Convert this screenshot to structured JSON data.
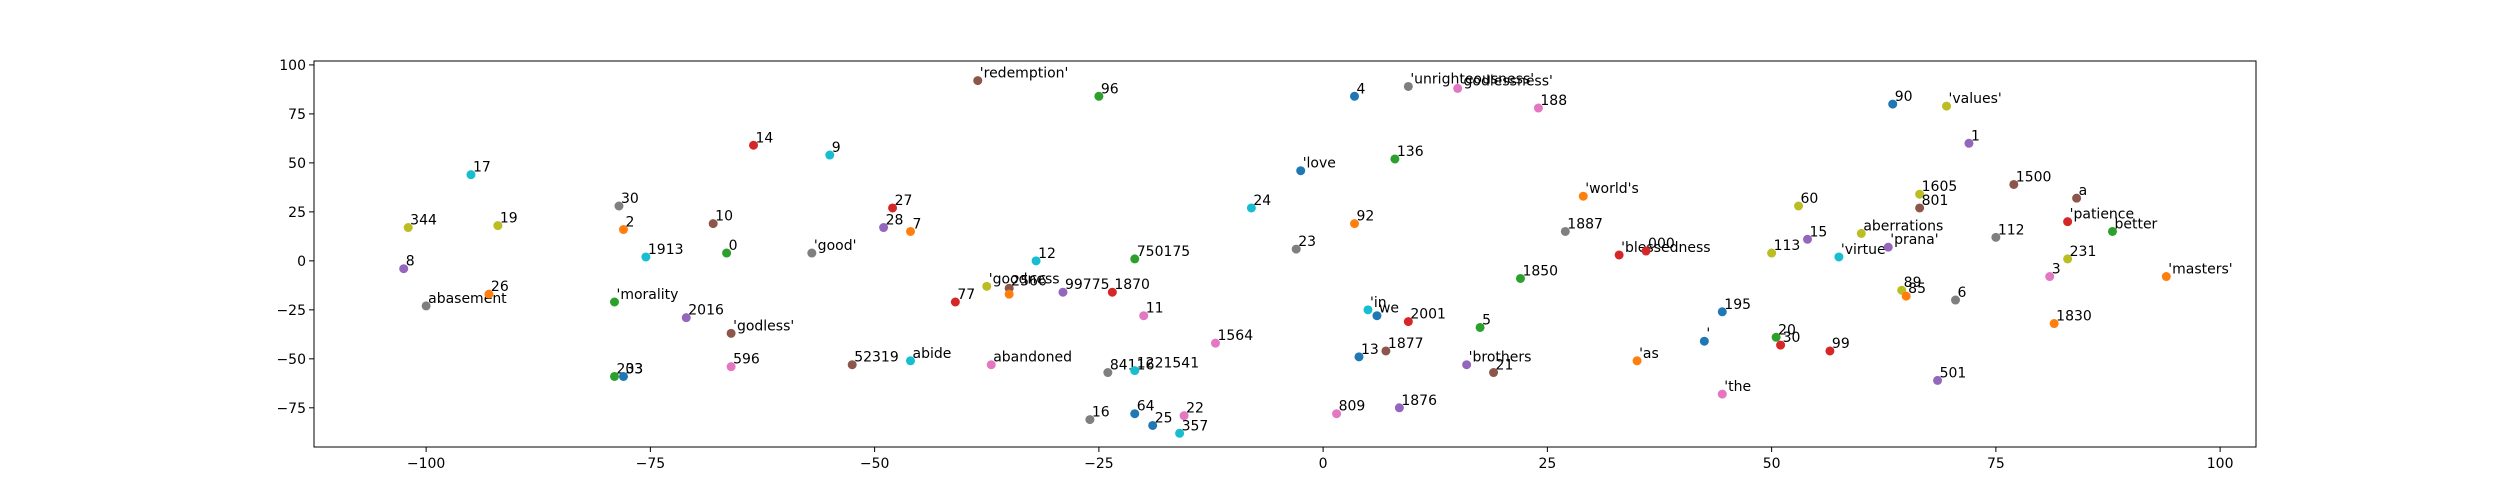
{
  "chart_data": {
    "type": "scatter",
    "title": "",
    "xlabel": "",
    "ylabel": "",
    "xlim": [
      -112.5,
      104
    ],
    "ylim": [
      -95,
      102
    ],
    "xticks": [
      -100,
      -75,
      -50,
      -25,
      0,
      25,
      50,
      75,
      100
    ],
    "yticks": [
      -75,
      -50,
      -25,
      0,
      25,
      50,
      75,
      100
    ],
    "grid": false,
    "legend": "none",
    "palette": [
      "#1f77b4",
      "#ff7f0e",
      "#2ca02c",
      "#d62728",
      "#9467bd",
      "#8c564b",
      "#e377c2",
      "#7f7f7f",
      "#bcbd22",
      "#17becf"
    ],
    "points": [
      {
        "x": -102.5,
        "y": -4,
        "label": "8",
        "c": 4
      },
      {
        "x": -102,
        "y": 17,
        "label": "344",
        "c": 8
      },
      {
        "x": -100,
        "y": -23,
        "label": "abasement",
        "c": 7
      },
      {
        "x": -95,
        "y": 44,
        "label": "17",
        "c": 9
      },
      {
        "x": -92,
        "y": 18,
        "label": "19",
        "c": 8
      },
      {
        "x": -93,
        "y": -17,
        "label": "26",
        "c": 1
      },
      {
        "x": -78.5,
        "y": 28,
        "label": "30",
        "c": 7
      },
      {
        "x": -78,
        "y": 16,
        "label": "2",
        "c": 1
      },
      {
        "x": -75.5,
        "y": 2,
        "label": "1913",
        "c": 9
      },
      {
        "x": -79,
        "y": -21,
        "label": "'morality",
        "c": 2
      },
      {
        "x": -79,
        "y": -59,
        "label": "203",
        "c": 2
      },
      {
        "x": -78,
        "y": -59,
        "label": "33",
        "c": 0
      },
      {
        "x": -71,
        "y": -29,
        "label": "2016",
        "c": 4
      },
      {
        "x": -68,
        "y": 19,
        "label": "10",
        "c": 5
      },
      {
        "x": -66.5,
        "y": 4,
        "label": "0",
        "c": 2
      },
      {
        "x": -66,
        "y": -37,
        "label": "'godless'",
        "c": 5
      },
      {
        "x": -66,
        "y": -54,
        "label": "596",
        "c": 6
      },
      {
        "x": -63.5,
        "y": 59,
        "label": "14",
        "c": 3
      },
      {
        "x": -57,
        "y": 4,
        "label": "'good'",
        "c": 7
      },
      {
        "x": -55,
        "y": 54,
        "label": "9",
        "c": 9
      },
      {
        "x": -52.5,
        "y": -53,
        "label": "52319",
        "c": 5
      },
      {
        "x": -48,
        "y": 27,
        "label": "27",
        "c": 3
      },
      {
        "x": -49,
        "y": 17,
        "label": "28",
        "c": 4
      },
      {
        "x": -46,
        "y": 15,
        "label": "7",
        "c": 1
      },
      {
        "x": -46,
        "y": -51,
        "label": "abide",
        "c": 9
      },
      {
        "x": -41,
        "y": -21,
        "label": "77",
        "c": 3
      },
      {
        "x": -38.5,
        "y": 92,
        "label": "'redemption'",
        "c": 5
      },
      {
        "x": -37.5,
        "y": -13,
        "label": "'goodness",
        "c": 8
      },
      {
        "x": -37,
        "y": -53,
        "label": "abandoned",
        "c": 6
      },
      {
        "x": -35,
        "y": -14,
        "label": "2566",
        "c": 5
      },
      {
        "x": -35,
        "y": -17,
        "label": "",
        "c": 1
      },
      {
        "x": -32,
        "y": 0,
        "label": "12",
        "c": 9
      },
      {
        "x": -29,
        "y": -16,
        "label": "99775",
        "c": 4
      },
      {
        "x": -25,
        "y": 84,
        "label": "96",
        "c": 2
      },
      {
        "x": -24,
        "y": -57,
        "label": "84116",
        "c": 7
      },
      {
        "x": -23.5,
        "y": -16,
        "label": "1870",
        "c": 3
      },
      {
        "x": -21,
        "y": 1,
        "label": "750175",
        "c": 2
      },
      {
        "x": -21,
        "y": -56,
        "label": "1221541",
        "c": 9
      },
      {
        "x": -21,
        "y": -78,
        "label": "64",
        "c": 0
      },
      {
        "x": -26,
        "y": -81,
        "label": "16",
        "c": 7
      },
      {
        "x": -20,
        "y": -28,
        "label": "11",
        "c": 6
      },
      {
        "x": -19,
        "y": -84,
        "label": "25",
        "c": 0
      },
      {
        "x": -15.5,
        "y": -79,
        "label": "22",
        "c": 6
      },
      {
        "x": -16,
        "y": -88,
        "label": "357",
        "c": 9
      },
      {
        "x": -12,
        "y": -42,
        "label": "1564",
        "c": 6
      },
      {
        "x": -8,
        "y": 27,
        "label": "24",
        "c": 9
      },
      {
        "x": -3,
        "y": 6,
        "label": "23",
        "c": 7
      },
      {
        "x": -2.5,
        "y": 46,
        "label": "'love",
        "c": 0
      },
      {
        "x": 1.5,
        "y": -78,
        "label": "809",
        "c": 6
      },
      {
        "x": 3.5,
        "y": 84,
        "label": "4",
        "c": 0
      },
      {
        "x": 3.5,
        "y": 19,
        "label": "92",
        "c": 1
      },
      {
        "x": 4,
        "y": -49,
        "label": "13",
        "c": 0
      },
      {
        "x": 5,
        "y": -25,
        "label": "'in",
        "c": 9
      },
      {
        "x": 6,
        "y": -28,
        "label": "we",
        "c": 0
      },
      {
        "x": 7,
        "y": -46,
        "label": "1877",
        "c": 5
      },
      {
        "x": 8,
        "y": 52,
        "label": "136",
        "c": 2
      },
      {
        "x": 8.5,
        "y": -75,
        "label": "1876",
        "c": 4
      },
      {
        "x": 9.5,
        "y": 89,
        "label": "'unrighteousness'",
        "c": 7
      },
      {
        "x": 9.5,
        "y": -31,
        "label": "2001",
        "c": 3
      },
      {
        "x": 15,
        "y": 88,
        "label": "'godlessness'",
        "c": 6
      },
      {
        "x": 16,
        "y": -53,
        "label": "'brothers",
        "c": 4
      },
      {
        "x": 17.5,
        "y": -34,
        "label": "5",
        "c": 2
      },
      {
        "x": 19,
        "y": -57,
        "label": "21",
        "c": 5
      },
      {
        "x": 22,
        "y": -9,
        "label": "1850",
        "c": 2
      },
      {
        "x": 24,
        "y": 78,
        "label": "188",
        "c": 6
      },
      {
        "x": 27,
        "y": 15,
        "label": "1887",
        "c": 7
      },
      {
        "x": 29,
        "y": 33,
        "label": "'world's",
        "c": 1
      },
      {
        "x": 33,
        "y": 3,
        "label": "'blessedness",
        "c": 3
      },
      {
        "x": 35,
        "y": -51,
        "label": "'as",
        "c": 1
      },
      {
        "x": 36,
        "y": 5,
        "label": "000",
        "c": 3
      },
      {
        "x": 42.5,
        "y": -41,
        "label": "'",
        "c": 0
      },
      {
        "x": 44.5,
        "y": -68,
        "label": "'the",
        "c": 6
      },
      {
        "x": 44.5,
        "y": -26,
        "label": "195",
        "c": 0
      },
      {
        "x": 50,
        "y": 4,
        "label": "113",
        "c": 8
      },
      {
        "x": 50.5,
        "y": -39,
        "label": "20",
        "c": 2
      },
      {
        "x": 51,
        "y": -43,
        "label": "30",
        "c": 3
      },
      {
        "x": 53,
        "y": 28,
        "label": "60",
        "c": 8
      },
      {
        "x": 54,
        "y": 11,
        "label": "15",
        "c": 4
      },
      {
        "x": 56.5,
        "y": -46,
        "label": "99",
        "c": 3
      },
      {
        "x": 57.5,
        "y": 2,
        "label": "'virtue",
        "c": 9
      },
      {
        "x": 60,
        "y": 14,
        "label": "aberrations",
        "c": 8
      },
      {
        "x": 63,
        "y": 7,
        "label": "'prana'",
        "c": 4
      },
      {
        "x": 63.5,
        "y": 80,
        "label": "90",
        "c": 0
      },
      {
        "x": 64.5,
        "y": -15,
        "label": "89",
        "c": 8
      },
      {
        "x": 65,
        "y": -18,
        "label": "85",
        "c": 1
      },
      {
        "x": 66.5,
        "y": 34,
        "label": "1605",
        "c": 8
      },
      {
        "x": 66.5,
        "y": 27,
        "label": "801",
        "c": 5
      },
      {
        "x": 68.5,
        "y": -61,
        "label": "501",
        "c": 4
      },
      {
        "x": 69.5,
        "y": 79,
        "label": "'values'",
        "c": 8
      },
      {
        "x": 70.5,
        "y": -20,
        "label": "6",
        "c": 7
      },
      {
        "x": 72,
        "y": 60,
        "label": "1",
        "c": 4
      },
      {
        "x": 75,
        "y": 12,
        "label": "112",
        "c": 7
      },
      {
        "x": 77,
        "y": 39,
        "label": "1500",
        "c": 5
      },
      {
        "x": 81,
        "y": -8,
        "label": "3",
        "c": 6
      },
      {
        "x": 81.5,
        "y": -32,
        "label": "1830",
        "c": 1
      },
      {
        "x": 83,
        "y": 20,
        "label": "'patience",
        "c": 3
      },
      {
        "x": 83,
        "y": 1,
        "label": "231",
        "c": 8
      },
      {
        "x": 84,
        "y": 32,
        "label": "a",
        "c": 5
      },
      {
        "x": 88,
        "y": 15,
        "label": "better",
        "c": 2
      },
      {
        "x": 94,
        "y": -8,
        "label": "'masters'",
        "c": 1
      }
    ]
  }
}
